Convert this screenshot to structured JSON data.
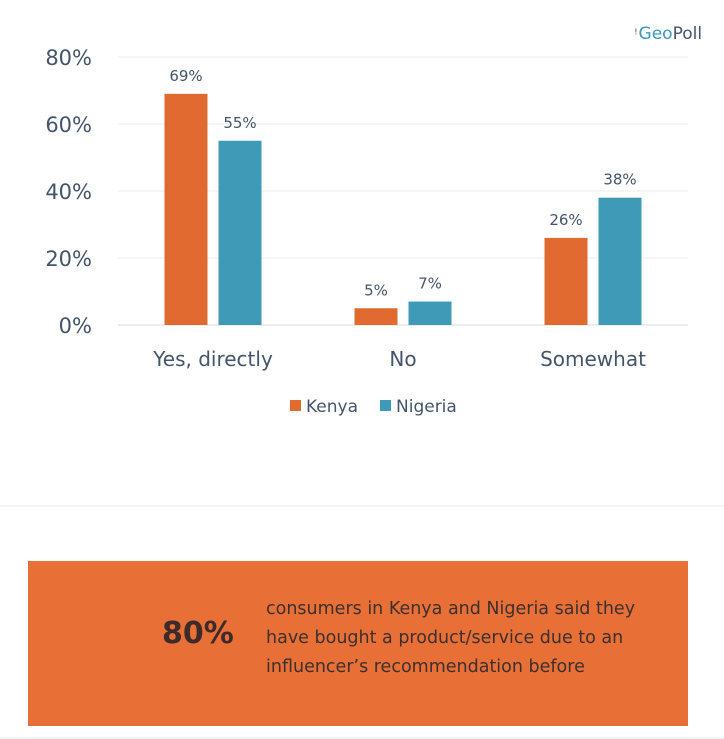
{
  "logo": {
    "text_g": "Geo",
    "text_rest": "Poll"
  },
  "chart_data": {
    "type": "bar",
    "categories": [
      "Yes, directly",
      "No",
      "Somewhat"
    ],
    "series": [
      {
        "name": "Kenya",
        "values": [
          69,
          5,
          26
        ],
        "color": "#e06a30",
        "labels": [
          "69%",
          "5%",
          "26%"
        ]
      },
      {
        "name": "Nigeria",
        "values": [
          55,
          7,
          38
        ],
        "color": "#3f9ab8",
        "labels": [
          "55%",
          "7%",
          "38%"
        ]
      }
    ],
    "ylim": [
      0,
      80
    ],
    "yticks": [
      "0%",
      "20%",
      "40%",
      "60%",
      "80%"
    ],
    "ytick_values": [
      0,
      20,
      40,
      60,
      80
    ],
    "grid": true,
    "legend_position": "bottom"
  },
  "stat": {
    "number": "80%",
    "text": "consumers in Kenya and Nigeria said they have bought a product/service due to an influencer’s recommendation before"
  }
}
